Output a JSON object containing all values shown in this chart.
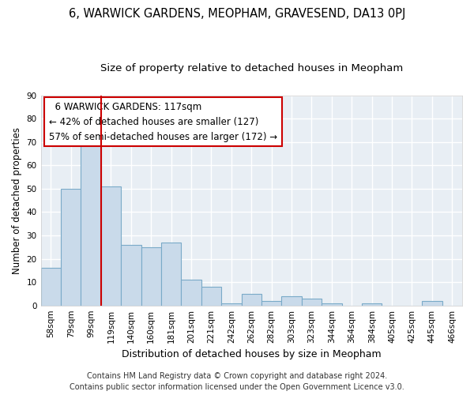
{
  "title1": "6, WARWICK GARDENS, MEOPHAM, GRAVESEND, DA13 0PJ",
  "title2": "Size of property relative to detached houses in Meopham",
  "xlabel": "Distribution of detached houses by size in Meopham",
  "ylabel": "Number of detached properties",
  "categories": [
    "58sqm",
    "79sqm",
    "99sqm",
    "119sqm",
    "140sqm",
    "160sqm",
    "181sqm",
    "201sqm",
    "221sqm",
    "242sqm",
    "262sqm",
    "282sqm",
    "303sqm",
    "323sqm",
    "344sqm",
    "364sqm",
    "384sqm",
    "405sqm",
    "425sqm",
    "445sqm",
    "466sqm"
  ],
  "values": [
    16,
    50,
    70,
    51,
    26,
    25,
    27,
    11,
    8,
    1,
    5,
    2,
    4,
    3,
    1,
    0,
    1,
    0,
    0,
    2,
    0
  ],
  "bar_color": "#c9daea",
  "bar_edge_color": "#7aaac8",
  "vline_x": 3,
  "vline_color": "#cc0000",
  "annotation_text": "  6 WARWICK GARDENS: 117sqm  \n← 42% of detached houses are smaller (127)\n57% of semi-detached houses are larger (172) →",
  "annotation_box_color": "white",
  "annotation_box_edge": "#cc0000",
  "ylim": [
    0,
    90
  ],
  "yticks": [
    0,
    10,
    20,
    30,
    40,
    50,
    60,
    70,
    80,
    90
  ],
  "footer1": "Contains HM Land Registry data © Crown copyright and database right 2024.",
  "footer2": "Contains public sector information licensed under the Open Government Licence v3.0.",
  "bg_color": "#ffffff",
  "plot_bg_color": "#e8eef4",
  "grid_color": "#ffffff",
  "title1_fontsize": 10.5,
  "title2_fontsize": 9.5,
  "xlabel_fontsize": 9,
  "ylabel_fontsize": 8.5,
  "tick_fontsize": 7.5,
  "footer_fontsize": 7,
  "annot_fontsize": 8.5
}
